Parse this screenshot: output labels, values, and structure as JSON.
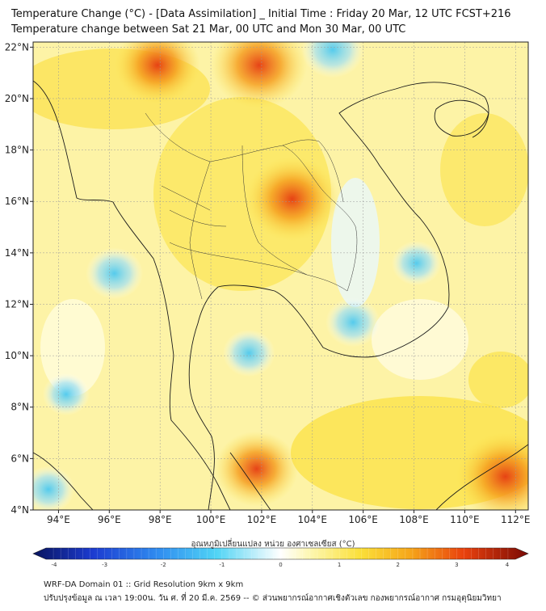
{
  "title": {
    "line1": "Temperature Change (°C) - [Data Assimilation] _ Initial Time : Friday 20 Mar, 12 UTC FCST+216",
    "line2": "Temperature change between Sat 21 Mar, 00 UTC and Mon 30 Mar, 00 UTC"
  },
  "map": {
    "lon_range": [
      93,
      112.5
    ],
    "lat_range": [
      4,
      22.2
    ],
    "lon_ticks": [
      "94°E",
      "96°E",
      "98°E",
      "100°E",
      "102°E",
      "104°E",
      "106°E",
      "108°E",
      "110°E",
      "112°E"
    ],
    "lat_ticks": [
      "4°N",
      "6°N",
      "8°N",
      "10°N",
      "12°N",
      "14°N",
      "16°N",
      "18°N",
      "20°N",
      "22°N"
    ],
    "hotspots": [
      {
        "lon": 101.9,
        "lat": 21.3,
        "value": 2.6
      },
      {
        "lon": 97.9,
        "lat": 21.3,
        "value": 2.2
      },
      {
        "lon": 103.2,
        "lat": 16.1,
        "value": 2.5
      },
      {
        "lon": 111.6,
        "lat": 5.3,
        "value": 2.7
      },
      {
        "lon": 101.8,
        "lat": 5.6,
        "value": 2.1
      },
      {
        "lon": 104.8,
        "lat": 21.9,
        "value": -1.3
      },
      {
        "lon": 96.2,
        "lat": 13.2,
        "value": -1.1
      },
      {
        "lon": 105.6,
        "lat": 11.3,
        "value": -1.0
      },
      {
        "lon": 101.5,
        "lat": 10.1,
        "value": -0.9
      },
      {
        "lon": 94.3,
        "lat": 8.5,
        "value": -0.7
      },
      {
        "lon": 108.1,
        "lat": 13.6,
        "value": -0.8
      },
      {
        "lon": 93.6,
        "lat": 4.8,
        "value": -0.9
      }
    ]
  },
  "colorbar": {
    "title": "อุณหภูมิเปลี่ยนแปลง หน่วย องศาเซลเซียส (°C)",
    "range": [
      -4,
      4
    ],
    "tick_labels": [
      "-4",
      "-3",
      "-2",
      "-1",
      "0",
      "1",
      "2",
      "3",
      "4"
    ]
  },
  "footer": {
    "line1": "WRF-DA Domain 01 :: Grid Resolution 9km x 9km",
    "line2": "ปรับปรุงข้อมูล ณ เวลา 19:00น. วัน ศ. ที่ 20 มี.ค. 2569 -- © ส่วนพยากรณ์อากาศเชิงตัวเลข กองพยากรณ์อากาศ กรมอุตุนิยมวิทยา"
  }
}
